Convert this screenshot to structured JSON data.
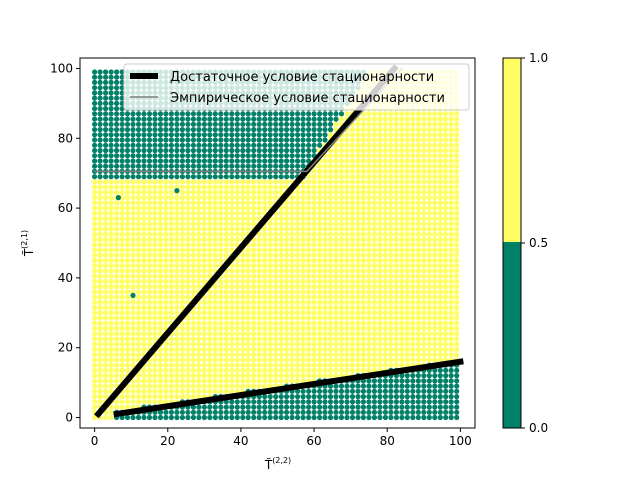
{
  "chart_data": {
    "type": "scatter",
    "xlabel": "T̃(2,2)",
    "ylabel": "T̃(2,1)",
    "xlabel_base": "T̃",
    "xlabel_sup": "(2,2)",
    "ylabel_base": "T̃",
    "ylabel_sup": "(2,1)",
    "xlim": [
      -4,
      104
    ],
    "ylim": [
      -3,
      103
    ],
    "xticks": [
      "0",
      "20",
      "40",
      "60",
      "80",
      "100"
    ],
    "yticks": [
      "0",
      "20",
      "40",
      "60",
      "80",
      "100"
    ],
    "grid": false,
    "legend_position": "top-right",
    "colors": {
      "yes": "#fefe62",
      "no": "#008066",
      "sufficient": "#000000",
      "empirical": "#808080"
    },
    "scatter": {
      "x_range": [
        0,
        100
      ],
      "y_range": [
        0,
        100
      ],
      "background_class": "yes",
      "upper_region_no": {
        "y_start": 70.5,
        "x_end_at_y70": 58,
        "diag_slope": 1.7,
        "diag_intercept": -28
      },
      "lower_region_no": {
        "slope": 0.155,
        "intercept": 0.2,
        "x_start": 5
      }
    },
    "series": [
      {
        "name": "Достаточное условие стационарности",
        "type": "line",
        "x": [
          1,
          82
        ],
        "y": [
          1,
          100
        ],
        "width": 6
      },
      {
        "name": "Достаточное условие стационарности",
        "type": "line",
        "x": [
          6,
          100
        ],
        "y": [
          1,
          16
        ],
        "width": 6
      },
      {
        "name": "Эмпирическое условие стационарности",
        "type": "line",
        "x": [
          0,
          58,
          84
        ],
        "y": [
          70.5,
          70.5,
          100
        ],
        "width": 1.5
      }
    ],
    "legend": [
      {
        "label": "Достаточное условие стационарности",
        "style": "thick-black"
      },
      {
        "label": "Эмпирическое условие стационарности",
        "style": "thin-gray"
      }
    ],
    "colorbar": {
      "range": [
        0,
        1
      ],
      "ticks": [
        "0.0",
        "0.5",
        "1.0"
      ],
      "segments": [
        {
          "from": 0,
          "to": 0.5,
          "color": "#008066"
        },
        {
          "from": 0.5,
          "to": 1,
          "color": "#fefe62"
        }
      ]
    }
  }
}
